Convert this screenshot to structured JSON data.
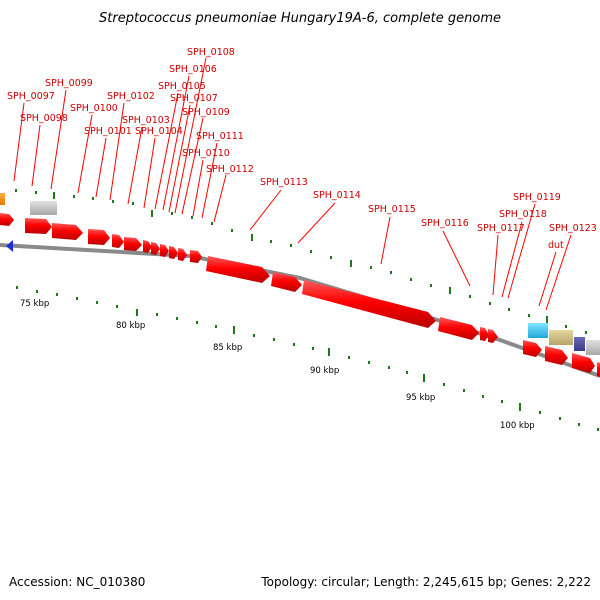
{
  "title": "Streptococcus pneumoniae Hungary19A-6, complete genome",
  "accession": "Accession: NC_010380",
  "summary": "Topology: circular; Length: 2,245,615 bp; Genes: 2,222",
  "scale_labels": [
    "75 kbp",
    "80 kbp",
    "85 kbp",
    "90 kbp",
    "95 kbp",
    "100 kbp"
  ],
  "genes": [
    "SPH_0097",
    "SPH_0098",
    "SPH_0099",
    "SPH_0100",
    "SPH_0101",
    "SPH_0102",
    "SPH_0103",
    "SPH_0104",
    "SPH_0105",
    "SPH_0106",
    "SPH_0107",
    "SPH_0108",
    "SPH_0109",
    "SPH_0110",
    "SPH_0111",
    "SPH_0112",
    "SPH_0113",
    "SPH_0114",
    "SPH_0115",
    "SPH_0116",
    "SPH_0117",
    "SPH_0118",
    "SPH_0119",
    "SPH_0123",
    "dut"
  ],
  "colors": {
    "gene": "#ff0000",
    "label": "#cc0000",
    "tick": "#1a7a1a",
    "backbone": "#8a8a8a"
  }
}
